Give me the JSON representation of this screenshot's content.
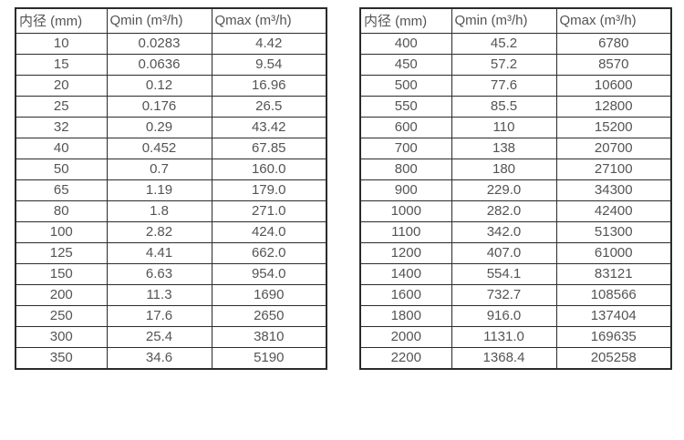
{
  "page": {
    "background_color": "#ffffff",
    "border_color": "#2b2b2b",
    "text_color": "#545454"
  },
  "tables": [
    {
      "name": "flow-rates-small-diameters",
      "columns": [
        "内径 (mm)",
        "Qmin (m³/h)",
        "Qmax (m³/h)"
      ],
      "rows": [
        [
          "10",
          "0.0283",
          "4.42"
        ],
        [
          "15",
          "0.0636",
          "9.54"
        ],
        [
          "20",
          "0.12",
          "16.96"
        ],
        [
          "25",
          "0.176",
          "26.5"
        ],
        [
          "32",
          "0.29",
          "43.42"
        ],
        [
          "40",
          "0.452",
          "67.85"
        ],
        [
          "50",
          "0.7",
          "160.0"
        ],
        [
          "65",
          "1.19",
          "179.0"
        ],
        [
          "80",
          "1.8",
          "271.0"
        ],
        [
          "100",
          "2.82",
          "424.0"
        ],
        [
          "125",
          "4.41",
          "662.0"
        ],
        [
          "150",
          "6.63",
          "954.0"
        ],
        [
          "200",
          "11.3",
          "1690"
        ],
        [
          "250",
          "17.6",
          "2650"
        ],
        [
          "300",
          "25.4",
          "3810"
        ],
        [
          "350",
          "34.6",
          "5190"
        ]
      ]
    },
    {
      "name": "flow-rates-large-diameters",
      "columns": [
        "内径 (mm)",
        "Qmin (m³/h)",
        "Qmax (m³/h)"
      ],
      "rows": [
        [
          "400",
          "45.2",
          "6780"
        ],
        [
          "450",
          "57.2",
          "8570"
        ],
        [
          "500",
          "77.6",
          "10600"
        ],
        [
          "550",
          "85.5",
          "12800"
        ],
        [
          "600",
          "110",
          "15200"
        ],
        [
          "700",
          "138",
          "20700"
        ],
        [
          "800",
          "180",
          "27100"
        ],
        [
          "900",
          "229.0",
          "34300"
        ],
        [
          "1000",
          "282.0",
          "42400"
        ],
        [
          "1100",
          "342.0",
          "51300"
        ],
        [
          "1200",
          "407.0",
          "61000"
        ],
        [
          "1400",
          "554.1",
          "83121"
        ],
        [
          "1600",
          "732.7",
          "108566"
        ],
        [
          "1800",
          "916.0",
          "137404"
        ],
        [
          "2000",
          "1131.0",
          "169635"
        ],
        [
          "2200",
          "1368.4",
          "205258"
        ]
      ]
    }
  ]
}
